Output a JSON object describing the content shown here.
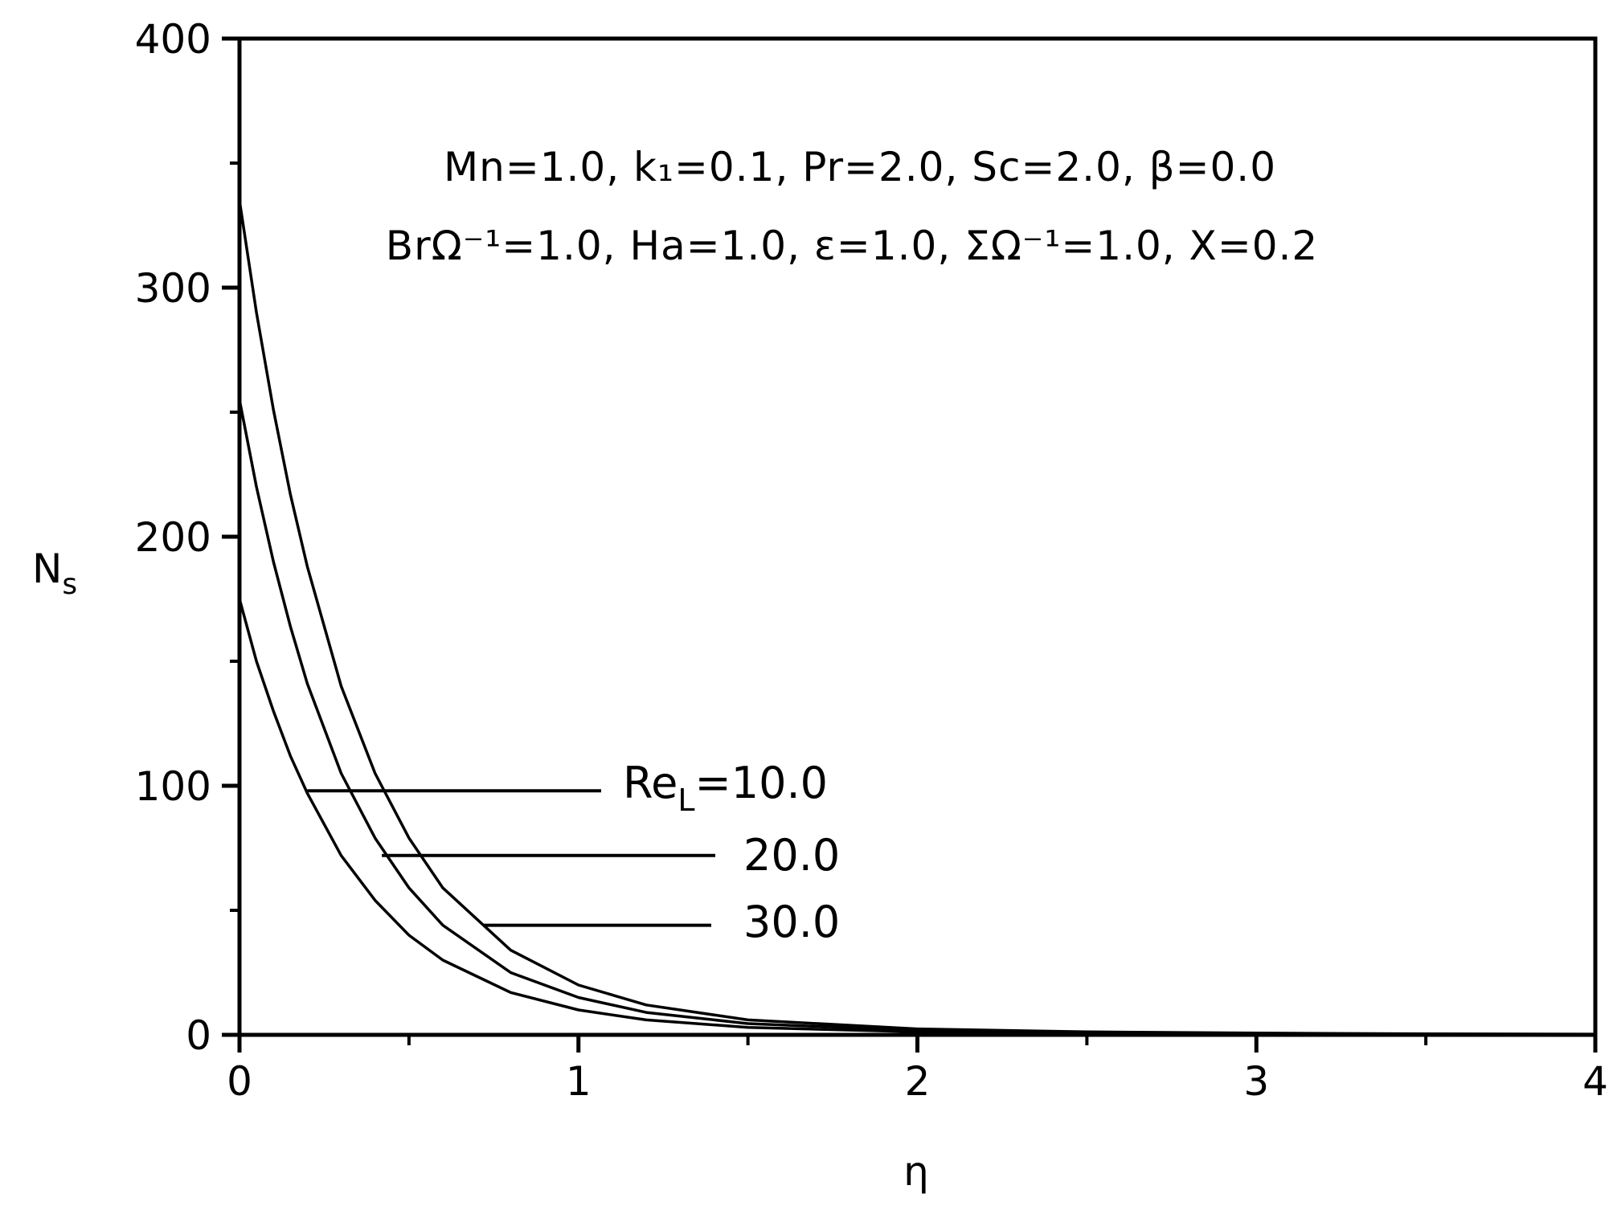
{
  "chart_data": {
    "type": "line",
    "xlabel": "η",
    "ylabel": "N",
    "ylabel_sub": "s",
    "xlim": [
      0,
      4
    ],
    "ylim": [
      0,
      400
    ],
    "x_ticks": [
      {
        "value": 0,
        "label": "0"
      },
      {
        "value": 1,
        "label": "1"
      },
      {
        "value": 2,
        "label": "2"
      },
      {
        "value": 3,
        "label": "3"
      },
      {
        "value": 4,
        "label": "4"
      }
    ],
    "y_ticks": [
      {
        "value": 0,
        "label": "0"
      },
      {
        "value": 100,
        "label": "100"
      },
      {
        "value": 200,
        "label": "200"
      },
      {
        "value": 300,
        "label": "300"
      },
      {
        "value": 400,
        "label": "400"
      }
    ],
    "annotation_line1": "Mn=1.0, k₁=0.1, Pr=2.0, Sc=2.0, β=0.0",
    "annotation_line2": "BrΩ⁻¹=1.0, Ha=1.0, ε=1.0, ΣΩ⁻¹=1.0, X=0.2",
    "legend_prefix": "Re",
    "legend_prefix_sub": "L",
    "legend_eq": "=",
    "series": [
      {
        "name": "10.0",
        "x": [
          0,
          0.05,
          0.1,
          0.15,
          0.2,
          0.3,
          0.4,
          0.5,
          0.6,
          0.8,
          1.0,
          1.2,
          1.5,
          2.0,
          2.5,
          3.0,
          3.5,
          4.0
        ],
        "y": [
          175,
          150,
          130,
          112,
          97,
          72,
          54,
          40,
          30,
          17,
          10,
          6,
          3,
          1.2,
          0.6,
          0.3,
          0.2,
          0.1
        ]
      },
      {
        "name": "20.0",
        "x": [
          0,
          0.05,
          0.1,
          0.15,
          0.2,
          0.3,
          0.4,
          0.5,
          0.6,
          0.8,
          1.0,
          1.2,
          1.5,
          2.0,
          2.5,
          3.0,
          3.5,
          4.0
        ],
        "y": [
          255,
          220,
          190,
          164,
          141,
          105,
          79,
          59,
          44,
          25,
          15,
          9,
          4.5,
          1.8,
          0.9,
          0.5,
          0.3,
          0.2
        ]
      },
      {
        "name": "30.0",
        "x": [
          0,
          0.05,
          0.1,
          0.15,
          0.2,
          0.3,
          0.4,
          0.5,
          0.6,
          0.8,
          1.0,
          1.2,
          1.5,
          2.0,
          2.5,
          3.0,
          3.5,
          4.0
        ],
        "y": [
          335,
          290,
          251,
          217,
          188,
          140,
          105,
          79,
          59,
          34,
          20,
          12,
          6,
          2.4,
          1.2,
          0.7,
          0.4,
          0.3
        ]
      }
    ],
    "leaders": [
      {
        "series": "10.0",
        "x": 0.2,
        "y": 98
      },
      {
        "series": "20.0",
        "x": 0.42,
        "y": 72
      },
      {
        "series": "30.0",
        "x": 0.72,
        "y": 44
      }
    ],
    "colors": {
      "line": "#000000",
      "background": "#ffffff"
    }
  }
}
